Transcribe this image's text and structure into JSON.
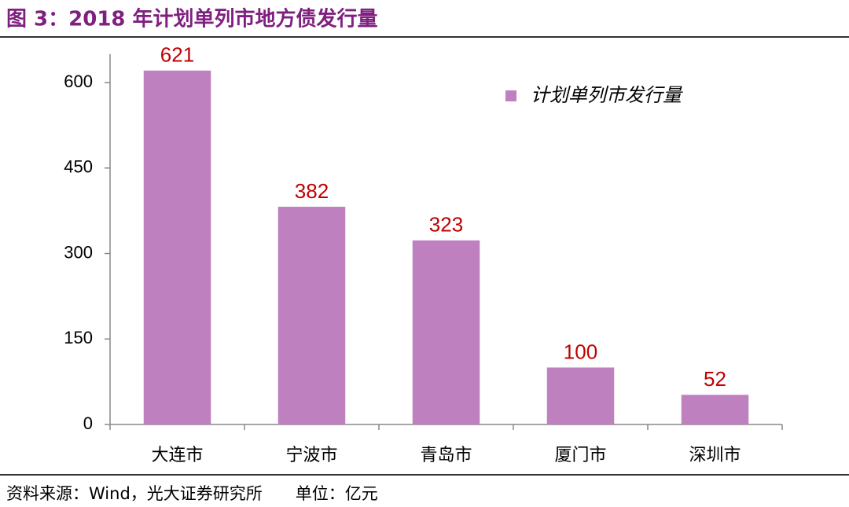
{
  "chart_data": {
    "type": "bar",
    "title": "图 3：2018 年计划单列市地方债发行量",
    "categories": [
      "大连市",
      "宁波市",
      "青岛市",
      "厦门市",
      "深圳市"
    ],
    "series": [
      {
        "name": "计划单列市发行量",
        "color": "#bf80bf",
        "values": [
          621,
          382,
          323,
          100,
          52
        ]
      }
    ],
    "ylim": [
      0,
      650
    ],
    "yticks": [
      0,
      150,
      300,
      450,
      600
    ],
    "value_label_color": "#c00000",
    "legend": "top-right",
    "source": "资料来源：Wind，光大证券研究所　　单位：亿元"
  }
}
